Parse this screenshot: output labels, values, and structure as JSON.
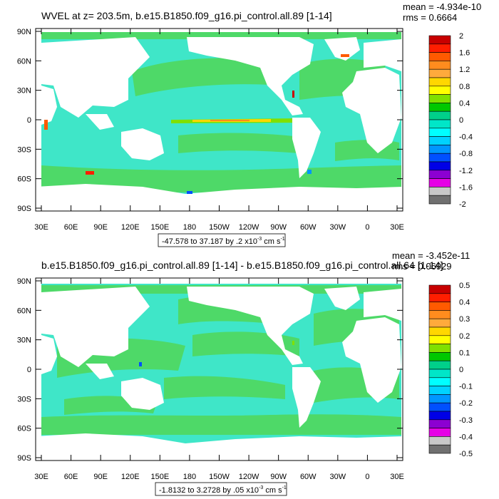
{
  "panels": [
    {
      "title": "WVEL at z= 203.5m, b.e15.B1850.f09_g16.pi_control.all.89 [1-14]",
      "stats": {
        "mean": "mean = -4.934e-10",
        "rms": "rms = 0.6664"
      },
      "lat_ticks": [
        "90N",
        "60N",
        "30N",
        "0",
        "30S",
        "60S",
        "90S"
      ],
      "lon_ticks": [
        "30E",
        "60E",
        "90E",
        "120E",
        "150E",
        "180",
        "150W",
        "120W",
        "90W",
        "60W",
        "30W",
        "0",
        "30E"
      ],
      "range_label": "-47.578 to 37.187 by .2 x10",
      "range_exp": "-3",
      "range_units": "cm s",
      "range_units_exp": "-1",
      "colorbar_labels": [
        "2",
        "1.6",
        "1.2",
        "0.8",
        "0.4",
        "0",
        "-0.4",
        "-0.8",
        "-1.2",
        "-1.6",
        "-2"
      ]
    },
    {
      "title": "b.e15.B1850.f09_g16.pi_control.all.89 [1-14] - b.e15.B1850.f09_g16.pi_control.all.64 [1-14]",
      "stats": {
        "mean": "mean = -3.452e-11",
        "rms": "rms = 0.06929"
      },
      "lat_ticks": [
        "90N",
        "60N",
        "30N",
        "0",
        "30S",
        "60S",
        "90S"
      ],
      "lon_ticks": [
        "30E",
        "60E",
        "90E",
        "120E",
        "150E",
        "180",
        "150W",
        "120W",
        "90W",
        "60W",
        "30W",
        "0",
        "30E"
      ],
      "range_label": "-1.8132 to 3.2728 by .05 x10",
      "range_exp": "-3",
      "range_units": "cm s",
      "range_units_exp": "-1",
      "colorbar_labels": [
        "0.5",
        "0.4",
        "0.3",
        "0.2",
        "0.1",
        "0",
        "-0.1",
        "-0.2",
        "-0.3",
        "-0.4",
        "-0.5"
      ]
    }
  ],
  "colorbar_colors": [
    "#c80000",
    "#ff1e00",
    "#ff5a00",
    "#ff8c1e",
    "#ffaa3c",
    "#ffd700",
    "#ffff00",
    "#80e000",
    "#00c800",
    "#00d08a",
    "#00e6c8",
    "#00ffff",
    "#00d2ff",
    "#0096ff",
    "#0050ff",
    "#0000e6",
    "#8c00d2",
    "#e600e6",
    "#c8c8c8",
    "#707070"
  ],
  "field_colors": {
    "ocean": "#3fe6c8",
    "ocean_green": "#4ed968",
    "land": "#ffffff"
  }
}
